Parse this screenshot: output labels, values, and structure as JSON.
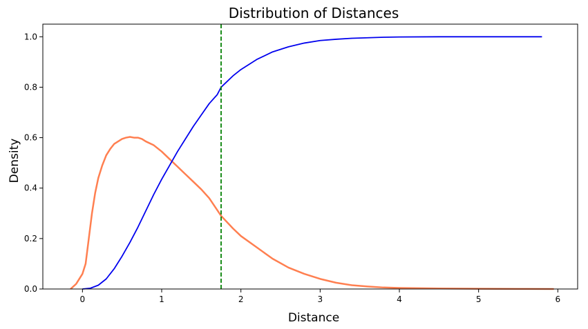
{
  "chart_data": {
    "type": "line",
    "title": "Distribution of Distances",
    "xlabel": "Distance",
    "ylabel": "Density",
    "xlim": [
      -0.5,
      6.25
    ],
    "ylim": [
      0,
      1.05
    ],
    "xticks": [
      0,
      1,
      2,
      3,
      4,
      5,
      6
    ],
    "yticks": [
      0.0,
      0.2,
      0.4,
      0.6,
      0.8,
      1.0
    ],
    "xtick_labels": [
      "0",
      "1",
      "2",
      "3",
      "4",
      "5",
      "6"
    ],
    "ytick_labels": [
      "0.0",
      "0.2",
      "0.4",
      "0.6",
      "0.8",
      "1.0"
    ],
    "grid": false,
    "series": [
      {
        "color": "#ff7f50",
        "x": [
          -0.15,
          -0.08,
          0.0,
          0.04,
          0.08,
          0.12,
          0.16,
          0.2,
          0.25,
          0.3,
          0.35,
          0.4,
          0.45,
          0.5,
          0.55,
          0.6,
          0.65,
          0.7,
          0.75,
          0.8,
          0.9,
          1.0,
          1.1,
          1.2,
          1.3,
          1.4,
          1.5,
          1.6,
          1.75,
          1.9,
          2.0,
          2.2,
          2.4,
          2.6,
          2.8,
          3.0,
          3.2,
          3.4,
          3.6,
          3.8,
          4.0,
          4.5,
          5.0,
          5.5,
          5.95
        ],
        "y": [
          0.0,
          0.02,
          0.06,
          0.1,
          0.2,
          0.3,
          0.38,
          0.44,
          0.49,
          0.53,
          0.555,
          0.575,
          0.585,
          0.595,
          0.6,
          0.603,
          0.6,
          0.6,
          0.595,
          0.585,
          0.57,
          0.545,
          0.515,
          0.485,
          0.455,
          0.425,
          0.395,
          0.36,
          0.29,
          0.24,
          0.21,
          0.165,
          0.12,
          0.085,
          0.06,
          0.04,
          0.025,
          0.015,
          0.01,
          0.006,
          0.004,
          0.002,
          0.001,
          0.0005,
          0.0
        ]
      },
      {
        "color": "#0000ee",
        "x": [
          0.0,
          0.1,
          0.2,
          0.3,
          0.4,
          0.5,
          0.6,
          0.7,
          0.8,
          0.9,
          1.0,
          1.1,
          1.2,
          1.3,
          1.4,
          1.5,
          1.6,
          1.7,
          1.75,
          1.8,
          1.9,
          2.0,
          2.2,
          2.4,
          2.6,
          2.8,
          3.0,
          3.2,
          3.4,
          3.6,
          3.8,
          4.0,
          4.5,
          5.0,
          5.5,
          5.8
        ],
        "y": [
          0.0,
          0.003,
          0.015,
          0.04,
          0.08,
          0.13,
          0.185,
          0.245,
          0.31,
          0.375,
          0.435,
          0.49,
          0.545,
          0.595,
          0.645,
          0.69,
          0.735,
          0.77,
          0.8,
          0.815,
          0.845,
          0.87,
          0.91,
          0.94,
          0.96,
          0.975,
          0.985,
          0.99,
          0.994,
          0.996,
          0.998,
          0.999,
          1.0,
          1.0,
          1.0,
          1.0
        ]
      }
    ],
    "vlines": [
      {
        "x": 1.75,
        "color": "#008000",
        "style": "dashed"
      }
    ]
  }
}
